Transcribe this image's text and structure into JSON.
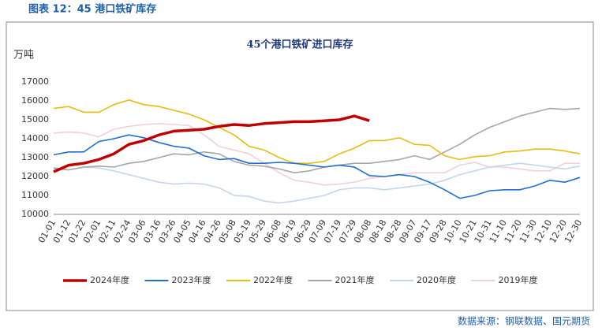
{
  "caption": "图表 12：45 港口铁矿库存",
  "source": "数据来源：钢联数据、国元期货",
  "chart_data": {
    "type": "line",
    "title": "45个港口铁矿进口库存",
    "y_label": "万吨",
    "categories": [
      "01-01",
      "01-12",
      "01-22",
      "02-01",
      "02-11",
      "02-24",
      "03-06",
      "03-16",
      "03-26",
      "04-05",
      "04-16",
      "04-26",
      "05-08",
      "05-19",
      "05-29",
      "06-08",
      "06-19",
      "06-29",
      "07-09",
      "07-19",
      "07-29",
      "08-08",
      "08-18",
      "08-28",
      "09-07",
      "09-17",
      "09-28",
      "10-10",
      "10-21",
      "10-31",
      "11-10",
      "11-20",
      "11-30",
      "12-10",
      "12-20",
      "12-30"
    ],
    "ylim": [
      10000,
      17000
    ],
    "yticks": [
      10000,
      11000,
      12000,
      13000,
      14000,
      15000,
      16000,
      17000
    ],
    "grid": false,
    "series": [
      {
        "name": "2024年度",
        "color": "#c00000",
        "values": [
          12250,
          12600,
          12700,
          12900,
          13200,
          13700,
          13900,
          14200,
          14400,
          14450,
          14500,
          14650,
          14750,
          14700,
          14800,
          14850,
          14900,
          14900,
          14950,
          15000,
          15200,
          14950,
          null,
          null,
          null,
          null,
          null,
          null,
          null,
          null,
          null,
          null,
          null,
          null,
          null,
          null
        ]
      },
      {
        "name": "2023年度",
        "color": "#1f6fd0",
        "values": [
          13150,
          13300,
          13300,
          13850,
          14000,
          14200,
          14050,
          13800,
          13600,
          13500,
          13100,
          12900,
          12950,
          12700,
          12700,
          12750,
          12700,
          12600,
          12500,
          12600,
          12500,
          12050,
          12000,
          12100,
          12000,
          11700,
          11300,
          10850,
          11000,
          11250,
          11300,
          11300,
          11500,
          11800,
          11700,
          11950
        ]
      },
      {
        "name": "2022年度",
        "color": "#e8bc10",
        "values": [
          15600,
          15700,
          15400,
          15400,
          15800,
          16050,
          15800,
          15700,
          15500,
          15300,
          15000,
          14600,
          14200,
          13600,
          13400,
          13000,
          12700,
          12700,
          12800,
          13200,
          13500,
          13900,
          13900,
          14050,
          13700,
          13650,
          13100,
          12900,
          13050,
          13100,
          13300,
          13350,
          13450,
          13450,
          13350,
          13200
        ]
      },
      {
        "name": "2021年度",
        "color": "#a6a6a6",
        "values": [
          12450,
          12350,
          12500,
          12550,
          12500,
          12700,
          12800,
          13000,
          13200,
          13150,
          13300,
          13200,
          12800,
          12600,
          12550,
          12400,
          12200,
          12300,
          12500,
          12600,
          12700,
          12700,
          12800,
          12900,
          13100,
          12900,
          13300,
          13700,
          14200,
          14600,
          14900,
          15200,
          15400,
          15600,
          15550,
          15600
        ]
      },
      {
        "name": "2020年度",
        "color": "#c5d5ea",
        "values": [
          12400,
          12350,
          12500,
          12450,
          12300,
          12100,
          11900,
          11700,
          11600,
          11650,
          11600,
          11400,
          11000,
          10950,
          10700,
          10600,
          10700,
          10850,
          11000,
          11300,
          11400,
          11400,
          11300,
          11400,
          11500,
          11600,
          11800,
          12100,
          12300,
          12500,
          12600,
          12700,
          12600,
          12500,
          12400,
          12550
        ]
      },
      {
        "name": "2019年度",
        "color": "#f2cfdc",
        "values": [
          14300,
          14350,
          14300,
          14100,
          14500,
          14650,
          14750,
          14800,
          14750,
          14700,
          14200,
          13600,
          13400,
          13200,
          12700,
          12200,
          11800,
          11700,
          11550,
          11600,
          11700,
          11900,
          12000,
          12100,
          12200,
          12200,
          12200,
          12600,
          12750,
          12500,
          12500,
          12400,
          12300,
          12300,
          12700,
          12700
        ]
      }
    ]
  }
}
